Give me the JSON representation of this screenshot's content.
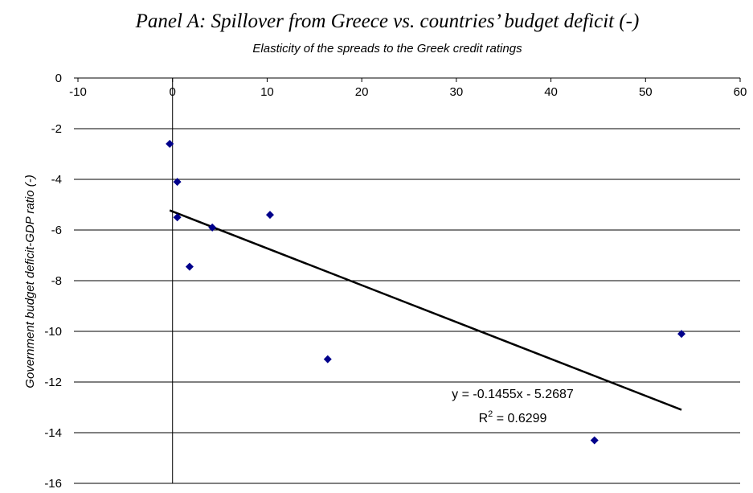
{
  "chart_data": {
    "type": "scatter",
    "title": "Panel A: Spillover from Greece vs. countries’ budget deficit (-)",
    "subtitle": "Elasticity of the spreads to the Greek credit ratings",
    "xlabel": "",
    "ylabel": "Government budget deficit-GDP ratio (-)",
    "xlim": [
      -10,
      60
    ],
    "ylim": [
      -16,
      0
    ],
    "xticks": [
      -10,
      0,
      10,
      20,
      30,
      40,
      50,
      60
    ],
    "yticks": [
      0,
      -2,
      -4,
      -6,
      -8,
      -10,
      -12,
      -14,
      -16
    ],
    "grid": {
      "horizontal": true,
      "vertical": false
    },
    "series": [
      {
        "marker": "diamond",
        "color": "#00008B",
        "points": [
          {
            "x": -0.3,
            "y": -2.6
          },
          {
            "x": 0.5,
            "y": -4.1
          },
          {
            "x": 0.5,
            "y": -5.5
          },
          {
            "x": 1.8,
            "y": -7.45
          },
          {
            "x": 4.2,
            "y": -5.9
          },
          {
            "x": 10.3,
            "y": -5.4
          },
          {
            "x": 16.4,
            "y": -11.1
          },
          {
            "x": 44.6,
            "y": -14.3
          },
          {
            "x": 53.8,
            "y": -10.1
          }
        ]
      }
    ],
    "trendline": {
      "slope": -0.1455,
      "intercept": -5.2687,
      "x_range": [
        -0.3,
        53.8
      ],
      "color": "#000000",
      "equation_label": "y = -0.1455x - 5.2687",
      "r2_prefix": "R",
      "r2_superscript": "2",
      "r2_value": " = 0.6299"
    }
  }
}
